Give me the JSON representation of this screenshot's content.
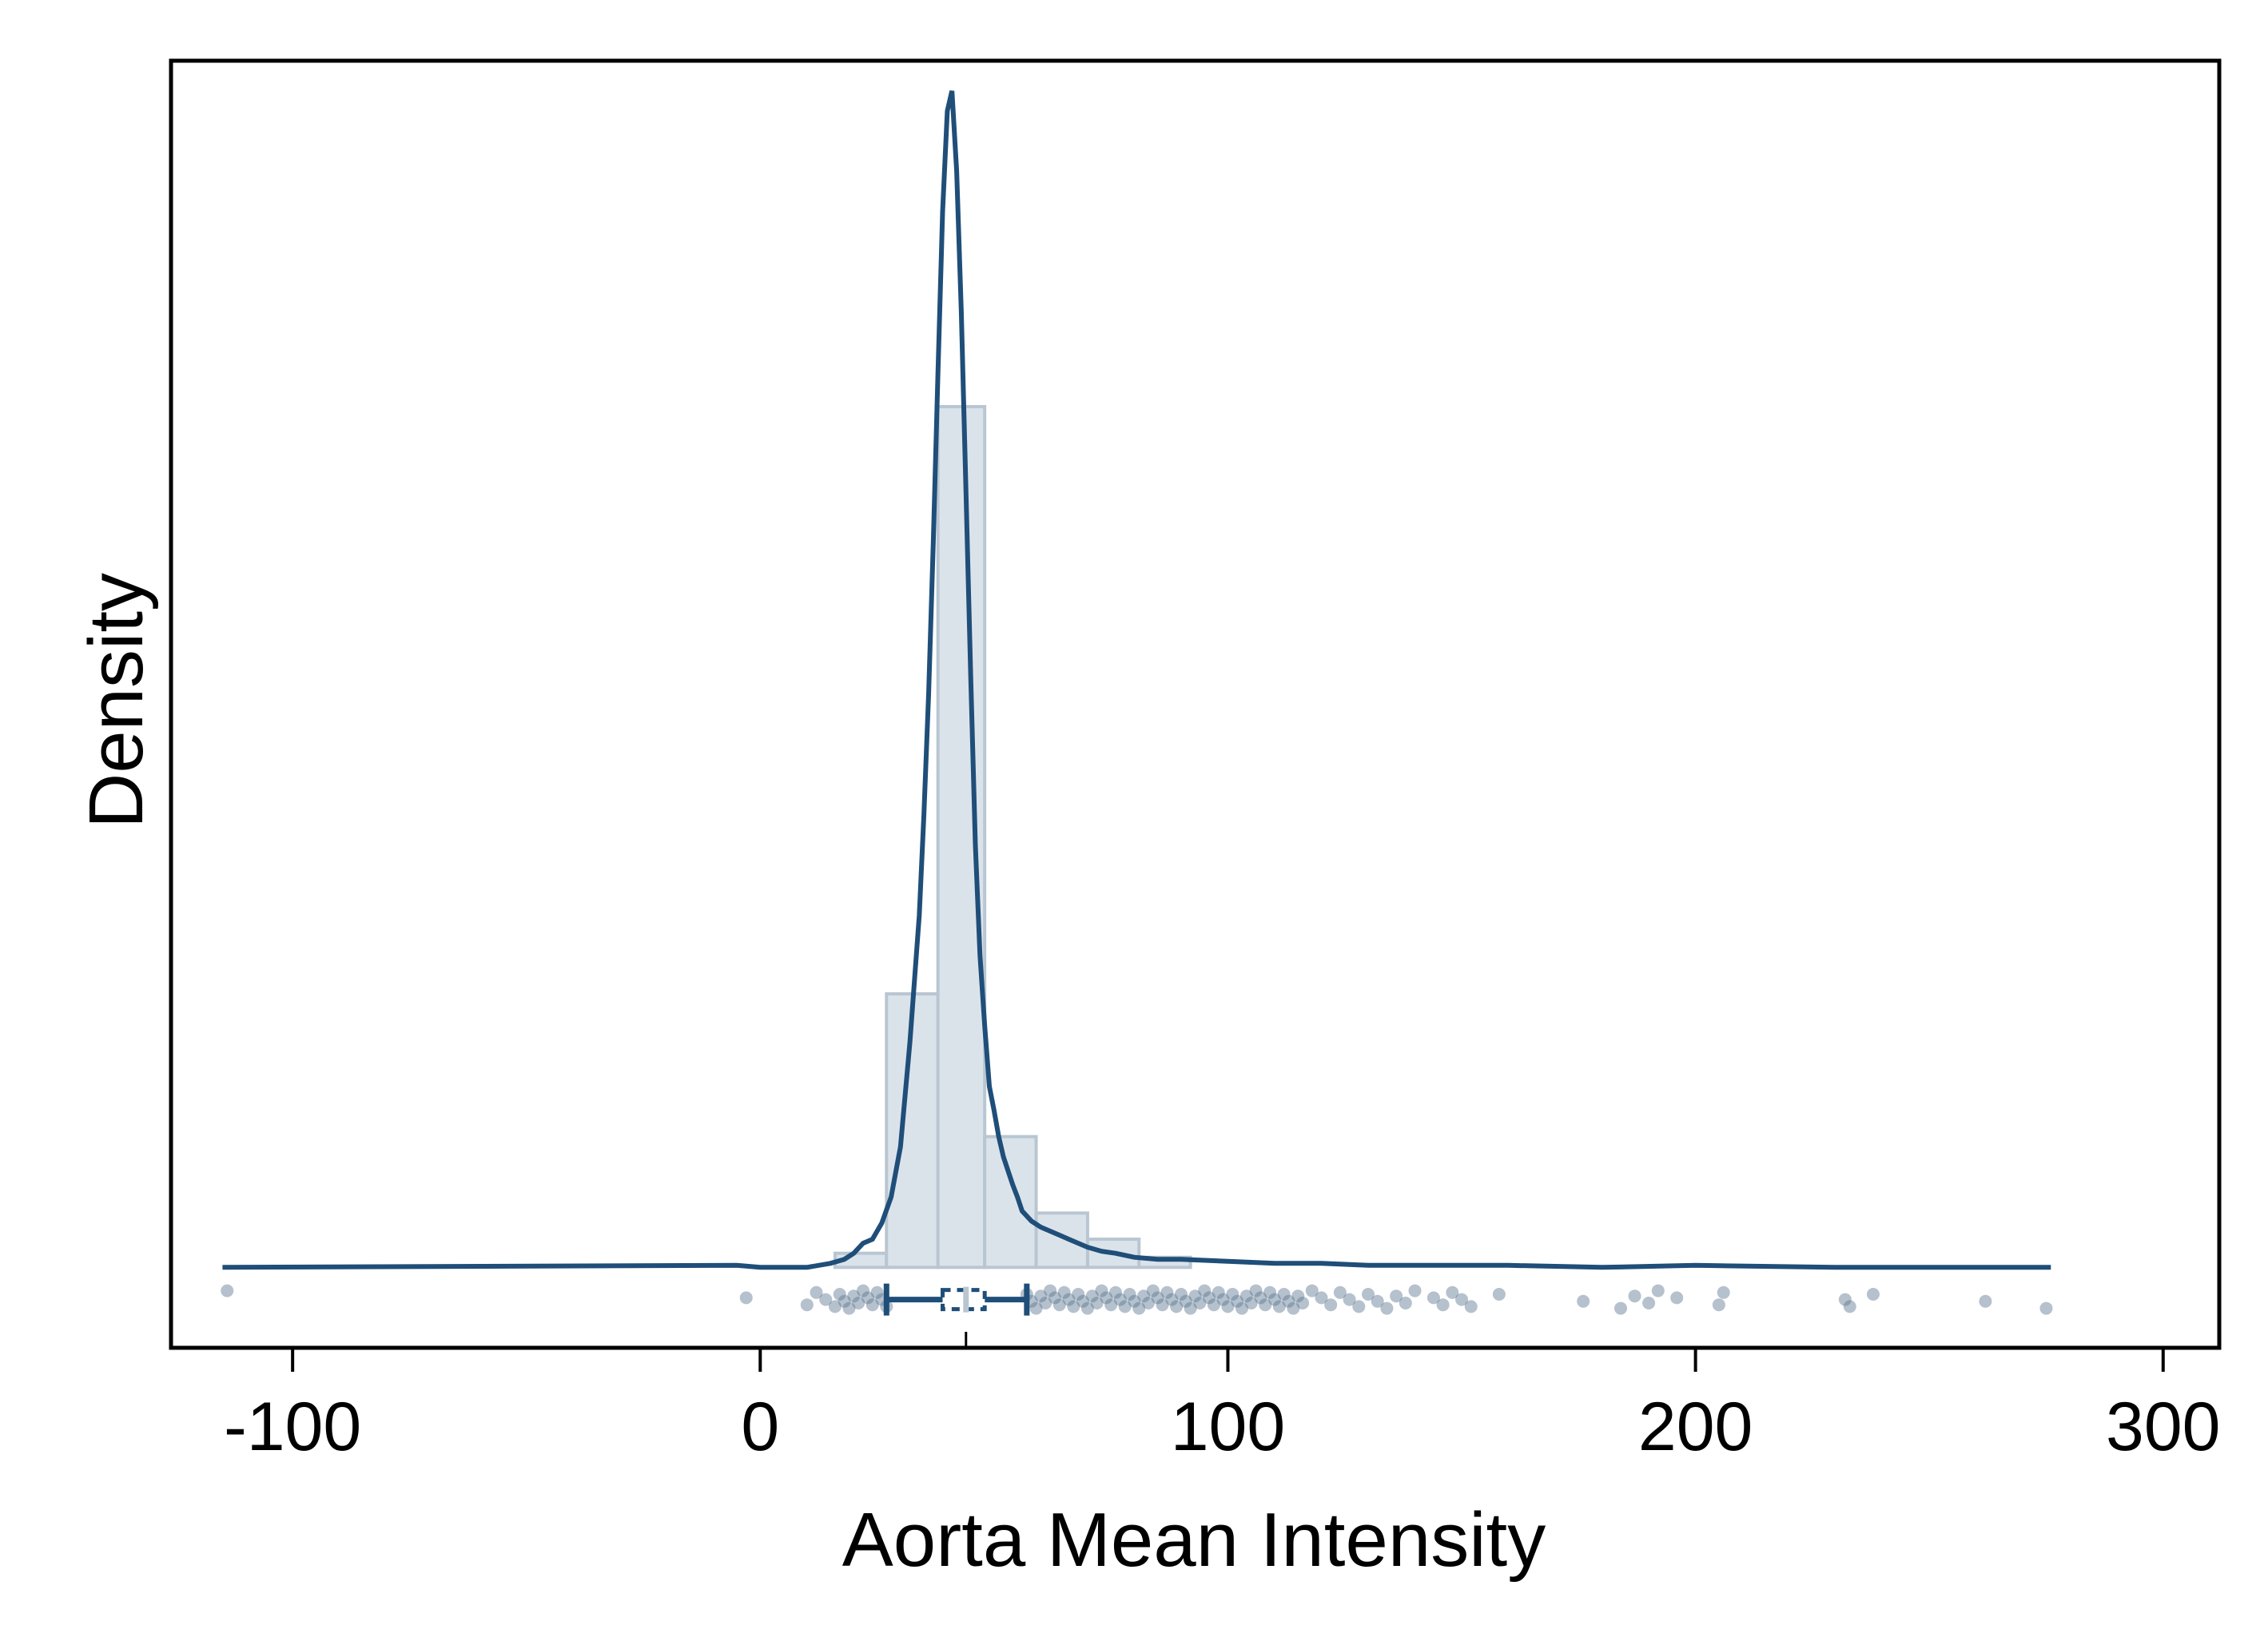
{
  "chart_data": {
    "type": "histogram",
    "title": "",
    "xlabel": "Aorta Mean Intensity",
    "ylabel": "Density",
    "xlim": [
      -126,
      312
    ],
    "ylim": [
      -0.004,
      0.06
    ],
    "x_ticks": [
      -100,
      0,
      100,
      200,
      300
    ],
    "y_ticks_labeled": false,
    "grid": false,
    "legend": "none",
    "colors": {
      "line": "#1f4e79",
      "bar_fill": "#dbe3ea",
      "bar_edge": "#b9c6d2",
      "points": "#5a7690",
      "frame": "#000000"
    },
    "histogram": {
      "bin_edges": [
        16,
        27,
        38,
        48,
        59,
        70,
        81,
        92
      ],
      "densities": [
        0.0007,
        0.0136,
        0.0428,
        0.0065,
        0.0027,
        0.0014,
        0.0005
      ]
    },
    "density_curve": {
      "x": [
        -115,
        -5,
        0,
        10,
        15,
        18,
        20,
        22,
        24,
        26,
        28,
        30,
        32,
        34,
        35,
        36,
        37,
        38,
        39,
        40,
        41,
        42,
        43,
        44,
        45,
        46,
        47,
        48,
        49,
        50,
        51,
        52,
        53,
        54,
        55,
        56,
        58,
        60,
        62,
        64,
        66,
        68,
        70,
        73,
        76,
        80,
        85,
        90,
        100,
        110,
        120,
        130,
        140,
        160,
        180,
        200,
        230,
        260,
        276
      ],
      "y": [
        0,
        0.0001,
        0,
        0,
        0.0002,
        0.0004,
        0.0007,
        0.0012,
        0.0014,
        0.0022,
        0.0035,
        0.006,
        0.0112,
        0.0175,
        0.0225,
        0.0285,
        0.036,
        0.0445,
        0.0525,
        0.0575,
        0.0585,
        0.0545,
        0.0475,
        0.0385,
        0.0295,
        0.021,
        0.0155,
        0.012,
        0.009,
        0.0078,
        0.0065,
        0.0055,
        0.0048,
        0.0041,
        0.0035,
        0.0028,
        0.0023,
        0.002,
        0.0018,
        0.0016,
        0.0014,
        0.0012,
        0.001,
        0.0008,
        0.0007,
        0.0005,
        0.0004,
        0.0004,
        0.0003,
        0.0002,
        0.0002,
        0.0001,
        0.0001,
        0.0001,
        0,
        0.0001,
        0,
        0,
        0
      ]
    },
    "boxplot": {
      "whisker_low": 27,
      "q1": 39,
      "median": 44,
      "q3": 48,
      "whisker_high": 57
    },
    "points": [
      -114,
      -3,
      10,
      12,
      14,
      16,
      17,
      18,
      19,
      20,
      21,
      22,
      23,
      24,
      25,
      26,
      27,
      57,
      58,
      59,
      60,
      61,
      62,
      63,
      64,
      65,
      66,
      67,
      68,
      69,
      70,
      71,
      72,
      73,
      74,
      75,
      76,
      77,
      78,
      79,
      80,
      81,
      82,
      83,
      84,
      85,
      86,
      87,
      88,
      89,
      90,
      91,
      92,
      93,
      94,
      95,
      96,
      97,
      98,
      99,
      100,
      101,
      102,
      103,
      104,
      105,
      106,
      107,
      108,
      109,
      110,
      111,
      112,
      113,
      114,
      115,
      116,
      118,
      120,
      122,
      124,
      126,
      128,
      130,
      132,
      134,
      136,
      138,
      140,
      144,
      146,
      148,
      150,
      152,
      158,
      176,
      184,
      187,
      190,
      192,
      196,
      205,
      206,
      232,
      233,
      238,
      262,
      275
    ]
  }
}
